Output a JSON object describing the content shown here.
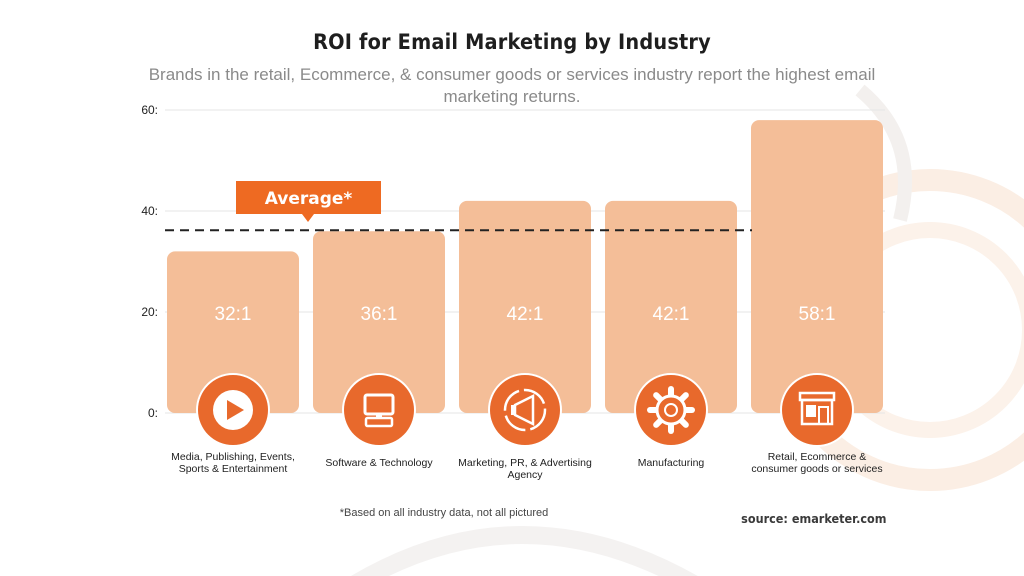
{
  "colors": {
    "bar": "#f4be98",
    "bar_label": "#ffffff",
    "icon_circle": "#e8692c",
    "average_box": "#ee6a22",
    "average_line": "#222222",
    "grid": "#e6e6e6"
  },
  "chart_data": {
    "type": "bar",
    "title": "ROI for Email Marketing by Industry",
    "subtitle": "Brands in the retail, Ecommerce, & consumer goods or services industry report the highest email marketing returns.",
    "categories": [
      "Media, Publishing, Events, Sports & Entertainment",
      "Software & Technology",
      "Marketing, PR, & Advertising Agency",
      "Manufacturing",
      "Retail, Ecommerce & consumer goods or services"
    ],
    "values": [
      32,
      36,
      42,
      42,
      58
    ],
    "data_labels": [
      "32:1",
      "36:1",
      "42:1",
      "42:1",
      "58:1"
    ],
    "icons": [
      "play-icon",
      "monitor-icon",
      "megaphone-icon",
      "gear-icon",
      "storefront-icon"
    ],
    "yticks": [
      0,
      20,
      40,
      60
    ],
    "ytick_labels": [
      "0:",
      "20:",
      "40:",
      "60:"
    ],
    "ylim": [
      0,
      60
    ],
    "grid": true,
    "average": {
      "label": "Average*",
      "value": 36
    },
    "footnote": "*Based on all industry data, not all pictured",
    "source": "source: emarketer.com"
  }
}
